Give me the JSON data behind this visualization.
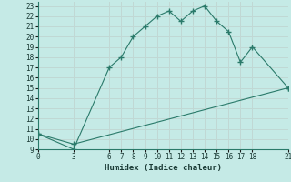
{
  "xlabel": "Humidex (Indice chaleur)",
  "bg_color": "#c5eae6",
  "grid_color": "#c0d8d4",
  "line_color": "#2a7a6a",
  "xlim": [
    0,
    21
  ],
  "ylim": [
    9,
    23.4
  ],
  "xticks": [
    0,
    3,
    6,
    7,
    8,
    9,
    10,
    11,
    12,
    13,
    14,
    15,
    16,
    17,
    18,
    21
  ],
  "yticks": [
    9,
    10,
    11,
    12,
    13,
    14,
    15,
    16,
    17,
    18,
    19,
    20,
    21,
    22,
    23
  ],
  "series1_x": [
    0,
    3,
    6,
    7,
    8,
    9,
    10,
    11,
    12,
    13,
    14,
    15,
    16,
    17,
    18,
    21
  ],
  "series1_y": [
    10.5,
    9.0,
    17.0,
    18.0,
    20.0,
    21.0,
    22.0,
    22.5,
    21.5,
    22.5,
    23.0,
    21.5,
    20.5,
    17.5,
    19.0,
    15.0
  ],
  "series2_x": [
    0,
    3,
    21
  ],
  "series2_y": [
    10.5,
    9.5,
    15.0
  ],
  "tick_fontsize": 5.5,
  "xlabel_fontsize": 6.5
}
